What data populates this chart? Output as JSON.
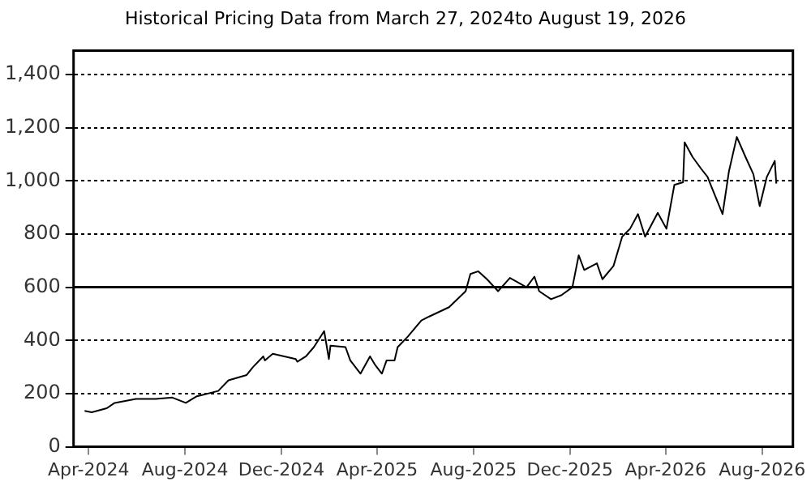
{
  "chart_data": {
    "type": "line",
    "title": "Historical Pricing Data from March 27, 2024to August 19, 2026",
    "x": [
      "2024-03-27",
      "2024-04-05",
      "2024-04-24",
      "2024-05-04",
      "2024-05-31",
      "2024-06-25",
      "2024-07-16",
      "2024-08-02",
      "2024-08-16",
      "2024-09-12",
      "2024-09-25",
      "2024-10-18",
      "2024-10-26",
      "2024-11-08",
      "2024-11-10",
      "2024-11-20",
      "2024-12-19",
      "2024-12-21",
      "2025-01-01",
      "2025-01-11",
      "2025-01-24",
      "2025-01-30",
      "2025-02-01",
      "2025-02-20",
      "2025-02-26",
      "2025-03-11",
      "2025-03-23",
      "2025-03-29",
      "2025-04-07",
      "2025-04-13",
      "2025-04-23",
      "2025-04-27",
      "2025-05-10",
      "2025-05-27",
      "2025-06-06",
      "2025-07-01",
      "2025-07-22",
      "2025-07-28",
      "2025-08-07",
      "2025-08-18",
      "2025-09-01",
      "2025-09-16",
      "2025-10-07",
      "2025-10-17",
      "2025-10-23",
      "2025-11-07",
      "2025-11-20",
      "2025-12-04",
      "2025-12-12",
      "2025-12-19",
      "2026-01-04",
      "2026-01-11",
      "2026-01-25",
      "2026-02-05",
      "2026-02-15",
      "2026-02-25",
      "2026-03-06",
      "2026-03-22",
      "2026-04-02",
      "2026-04-12",
      "2026-04-23",
      "2026-04-25",
      "2026-05-05",
      "2026-05-16",
      "2026-05-24",
      "2026-05-30",
      "2026-06-12",
      "2026-06-20",
      "2026-06-30",
      "2026-07-11",
      "2026-07-21",
      "2026-07-29",
      "2026-08-07",
      "2026-08-17",
      "2026-08-19"
    ],
    "series": [
      {
        "color": "#000000",
        "values": [
          135,
          130,
          145,
          165,
          180,
          180,
          185,
          165,
          190,
          210,
          250,
          270,
          300,
          340,
          325,
          350,
          330,
          320,
          340,
          375,
          435,
          330,
          380,
          375,
          325,
          275,
          340,
          310,
          275,
          325,
          325,
          375,
          415,
          475,
          490,
          525,
          585,
          650,
          660,
          630,
          585,
          635,
          600,
          640,
          585,
          555,
          570,
          600,
          720,
          665,
          690,
          630,
          680,
          790,
          820,
          875,
          790,
          880,
          820,
          985,
          995,
          1145,
          1090,
          1045,
          1015,
          970,
          875,
          1035,
          1165,
          1090,
          1025,
          905,
          1015,
          1075,
          990
        ]
      }
    ],
    "xlim": [
      "2024-03-13",
      "2026-09-09"
    ],
    "xticks": [
      {
        "value": "2024-04-01",
        "label": "Apr-2024"
      },
      {
        "value": "2024-08-01",
        "label": "Aug-2024"
      },
      {
        "value": "2024-12-01",
        "label": "Dec-2024"
      },
      {
        "value": "2025-04-01",
        "label": "Apr-2025"
      },
      {
        "value": "2025-08-01",
        "label": "Aug-2025"
      },
      {
        "value": "2025-12-01",
        "label": "Dec-2025"
      },
      {
        "value": "2026-04-01",
        "label": "Apr-2026"
      },
      {
        "value": "2026-08-01",
        "label": "Aug-2026"
      }
    ],
    "ylim": [
      0,
      1490
    ],
    "yticks": [
      0,
      200,
      400,
      600,
      800,
      {
        "value": 1000,
        "label": "1,000"
      },
      {
        "value": 1200,
        "label": "1,200"
      },
      {
        "value": 1400,
        "label": "1,400"
      }
    ],
    "grid": "y",
    "legend": false,
    "marker": "none",
    "line_style": "solid",
    "ref_lines": [
      {
        "axis": "y",
        "value": 600,
        "color": "#000000",
        "line_style": "solid"
      }
    ]
  }
}
